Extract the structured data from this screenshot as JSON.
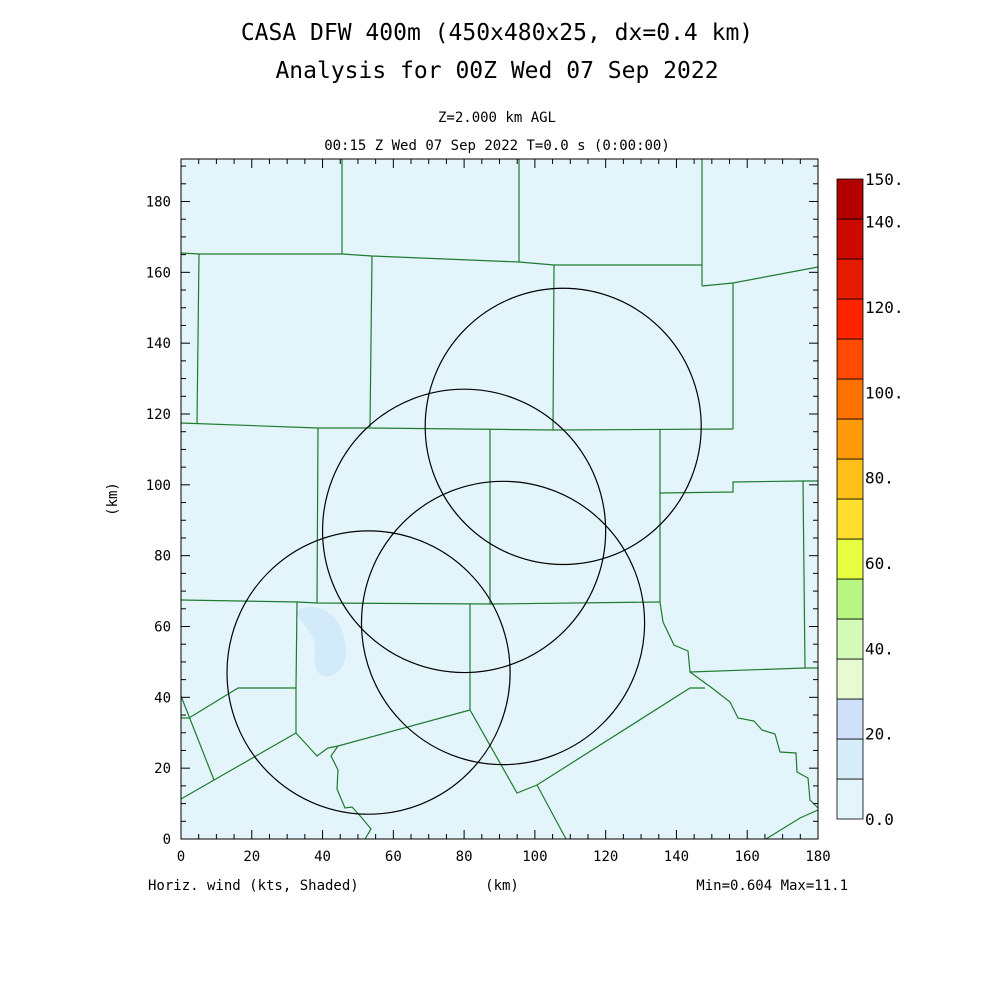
{
  "title_line1": "CASA DFW 400m (450x480x25, dx=0.4 km)",
  "title_line2": "Analysis for 00Z Wed 07 Sep 2022",
  "level_label": "Z=2.000 km AGL",
  "time_label": "00:15 Z Wed 07 Sep 2022   T=0.0 s (0:00:00)",
  "x_axis_label": "(km)",
  "y_axis_label": "(km)",
  "x_ticks": [
    "0",
    "20",
    "40",
    "60",
    "80",
    "100",
    "120",
    "140",
    "160",
    "180"
  ],
  "y_ticks": [
    "0",
    "20",
    "40",
    "60",
    "80",
    "100",
    "120",
    "140",
    "160",
    "180"
  ],
  "footer_left": "Horiz. wind (kts, Shaded)",
  "footer_center": "(km)",
  "footer_right": "Min=0.604 Max=11.1",
  "colorbar_labels": [
    "150.",
    "140.",
    "120.",
    "100.",
    "80.",
    "60.",
    "40.",
    "20.",
    "0.0"
  ],
  "colors": {
    "field_background": "#e3f5fb",
    "field_patch": "#d2eafa",
    "county_lines": "#1f7a2e",
    "radar_rings": "#000000",
    "colorbar": [
      "#e3f5fb",
      "#d7eefa",
      "#d0e0fa",
      "#e6fbd2",
      "#d3fab6",
      "#b9f582",
      "#e6ff40",
      "#ffdf2d",
      "#ffbf1a",
      "#ff9a0a",
      "#ff7200",
      "#ff4a00",
      "#ff2400",
      "#e61a00",
      "#cc0a00",
      "#b20000"
    ]
  },
  "radar_rings": [
    {
      "center_km": [
        108,
        116.5
      ],
      "radius_km": 39
    },
    {
      "center_km": [
        80,
        87
      ],
      "radius_km": 40
    },
    {
      "center_km": [
        53,
        47
      ],
      "radius_km": 40
    },
    {
      "center_km": [
        91,
        61
      ],
      "radius_km": 40
    }
  ]
}
